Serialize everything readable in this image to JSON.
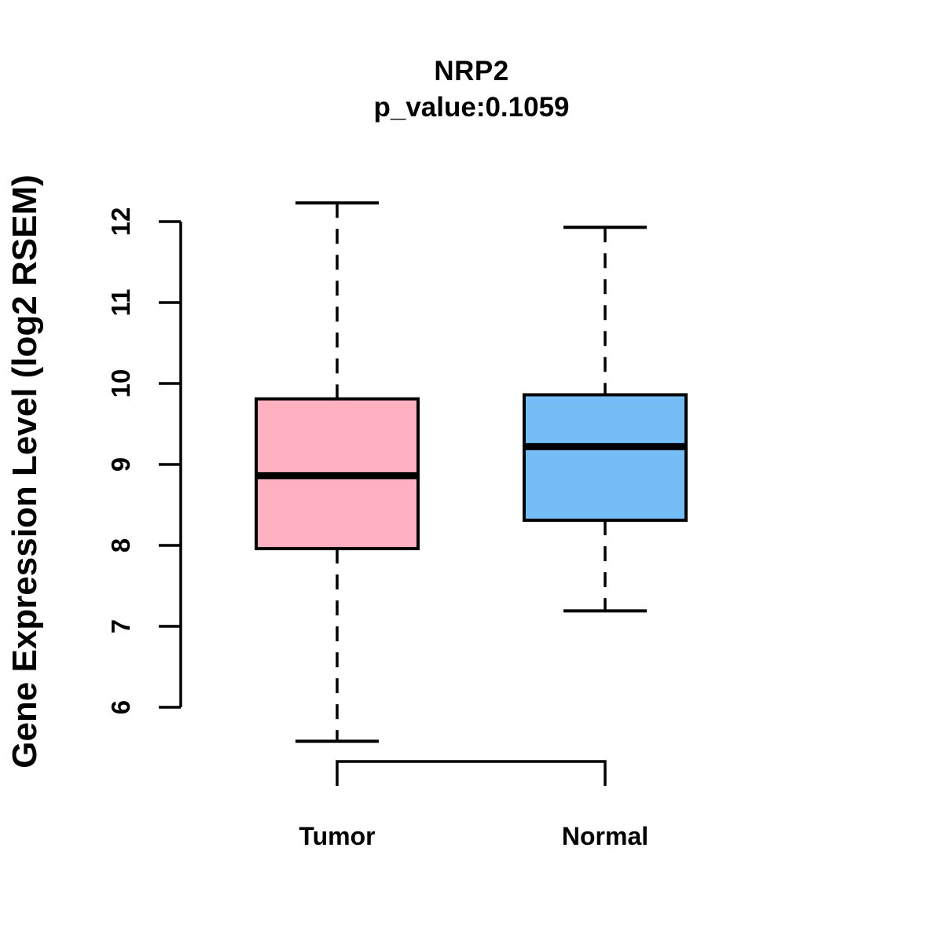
{
  "figure": {
    "background": "#ffffff",
    "foreground": "#000000"
  },
  "chart_data": {
    "type": "boxplot",
    "title": "NRP2",
    "subtitle": "p_value:0.1059",
    "xlabel": "",
    "ylabel": "Gene Expression Level (log2 RSEM)",
    "categories": [
      "Tumor",
      "Normal"
    ],
    "ylim": [
      6,
      12
    ],
    "yticks": [
      6,
      7,
      8,
      9,
      10,
      11,
      12
    ],
    "grid": false,
    "legend": "none",
    "whisker_line_style": "dashed",
    "series": [
      {
        "name": "Tumor",
        "whisker_low": 5.58,
        "q1": 7.96,
        "median": 8.86,
        "q3": 9.81,
        "whisker_high": 12.23,
        "fill": "#FFB1C1"
      },
      {
        "name": "Normal",
        "whisker_low": 7.19,
        "q1": 8.31,
        "median": 9.22,
        "q3": 9.86,
        "whisker_high": 11.93,
        "fill": "#74BEF5"
      }
    ],
    "colors": {
      "box_border": "#000000",
      "median_line": "#000000",
      "whisker": "#000000",
      "axis": "#000000",
      "text": "#000000"
    }
  }
}
